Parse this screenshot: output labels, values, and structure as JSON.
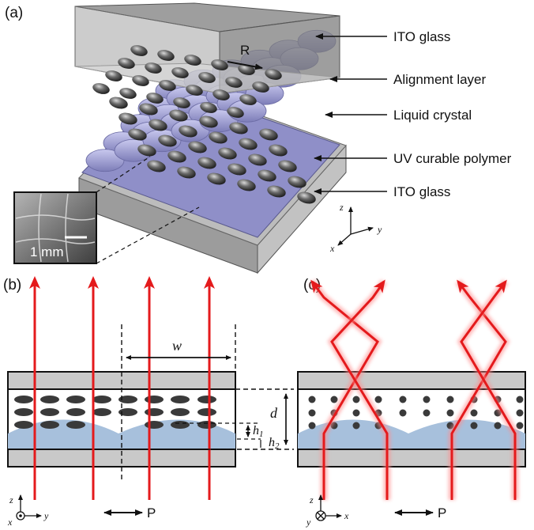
{
  "panels": {
    "a": "(a)",
    "b": "(b)",
    "c": "(c)"
  },
  "layers": {
    "ito_top": "ITO glass",
    "alignment": "Alignment layer",
    "liquid_crystal": "Liquid crystal",
    "uv_polymer": "UV curable polymer",
    "ito_bottom": "ITO glass"
  },
  "rubbing_label": "R",
  "inset_scale": "1 mm",
  "axes_a": {
    "z": "z",
    "y": "y",
    "x": "x"
  },
  "dims": {
    "w": "w",
    "d": "d",
    "h1_main": "h",
    "h1_sub": "1",
    "h2_main": "h",
    "h2_sub": "2"
  },
  "axes_b": {
    "z": "z",
    "y": "y",
    "x": "x"
  },
  "axes_c": {
    "z": "z",
    "y": "y",
    "x": "x"
  },
  "polarization": "P",
  "colors": {
    "beam": "#e41a1c",
    "glow": "#ff9a9a",
    "polymer": "#a7c0dc",
    "glass": "#c9c9c9",
    "lc": "#3a3a3a"
  }
}
